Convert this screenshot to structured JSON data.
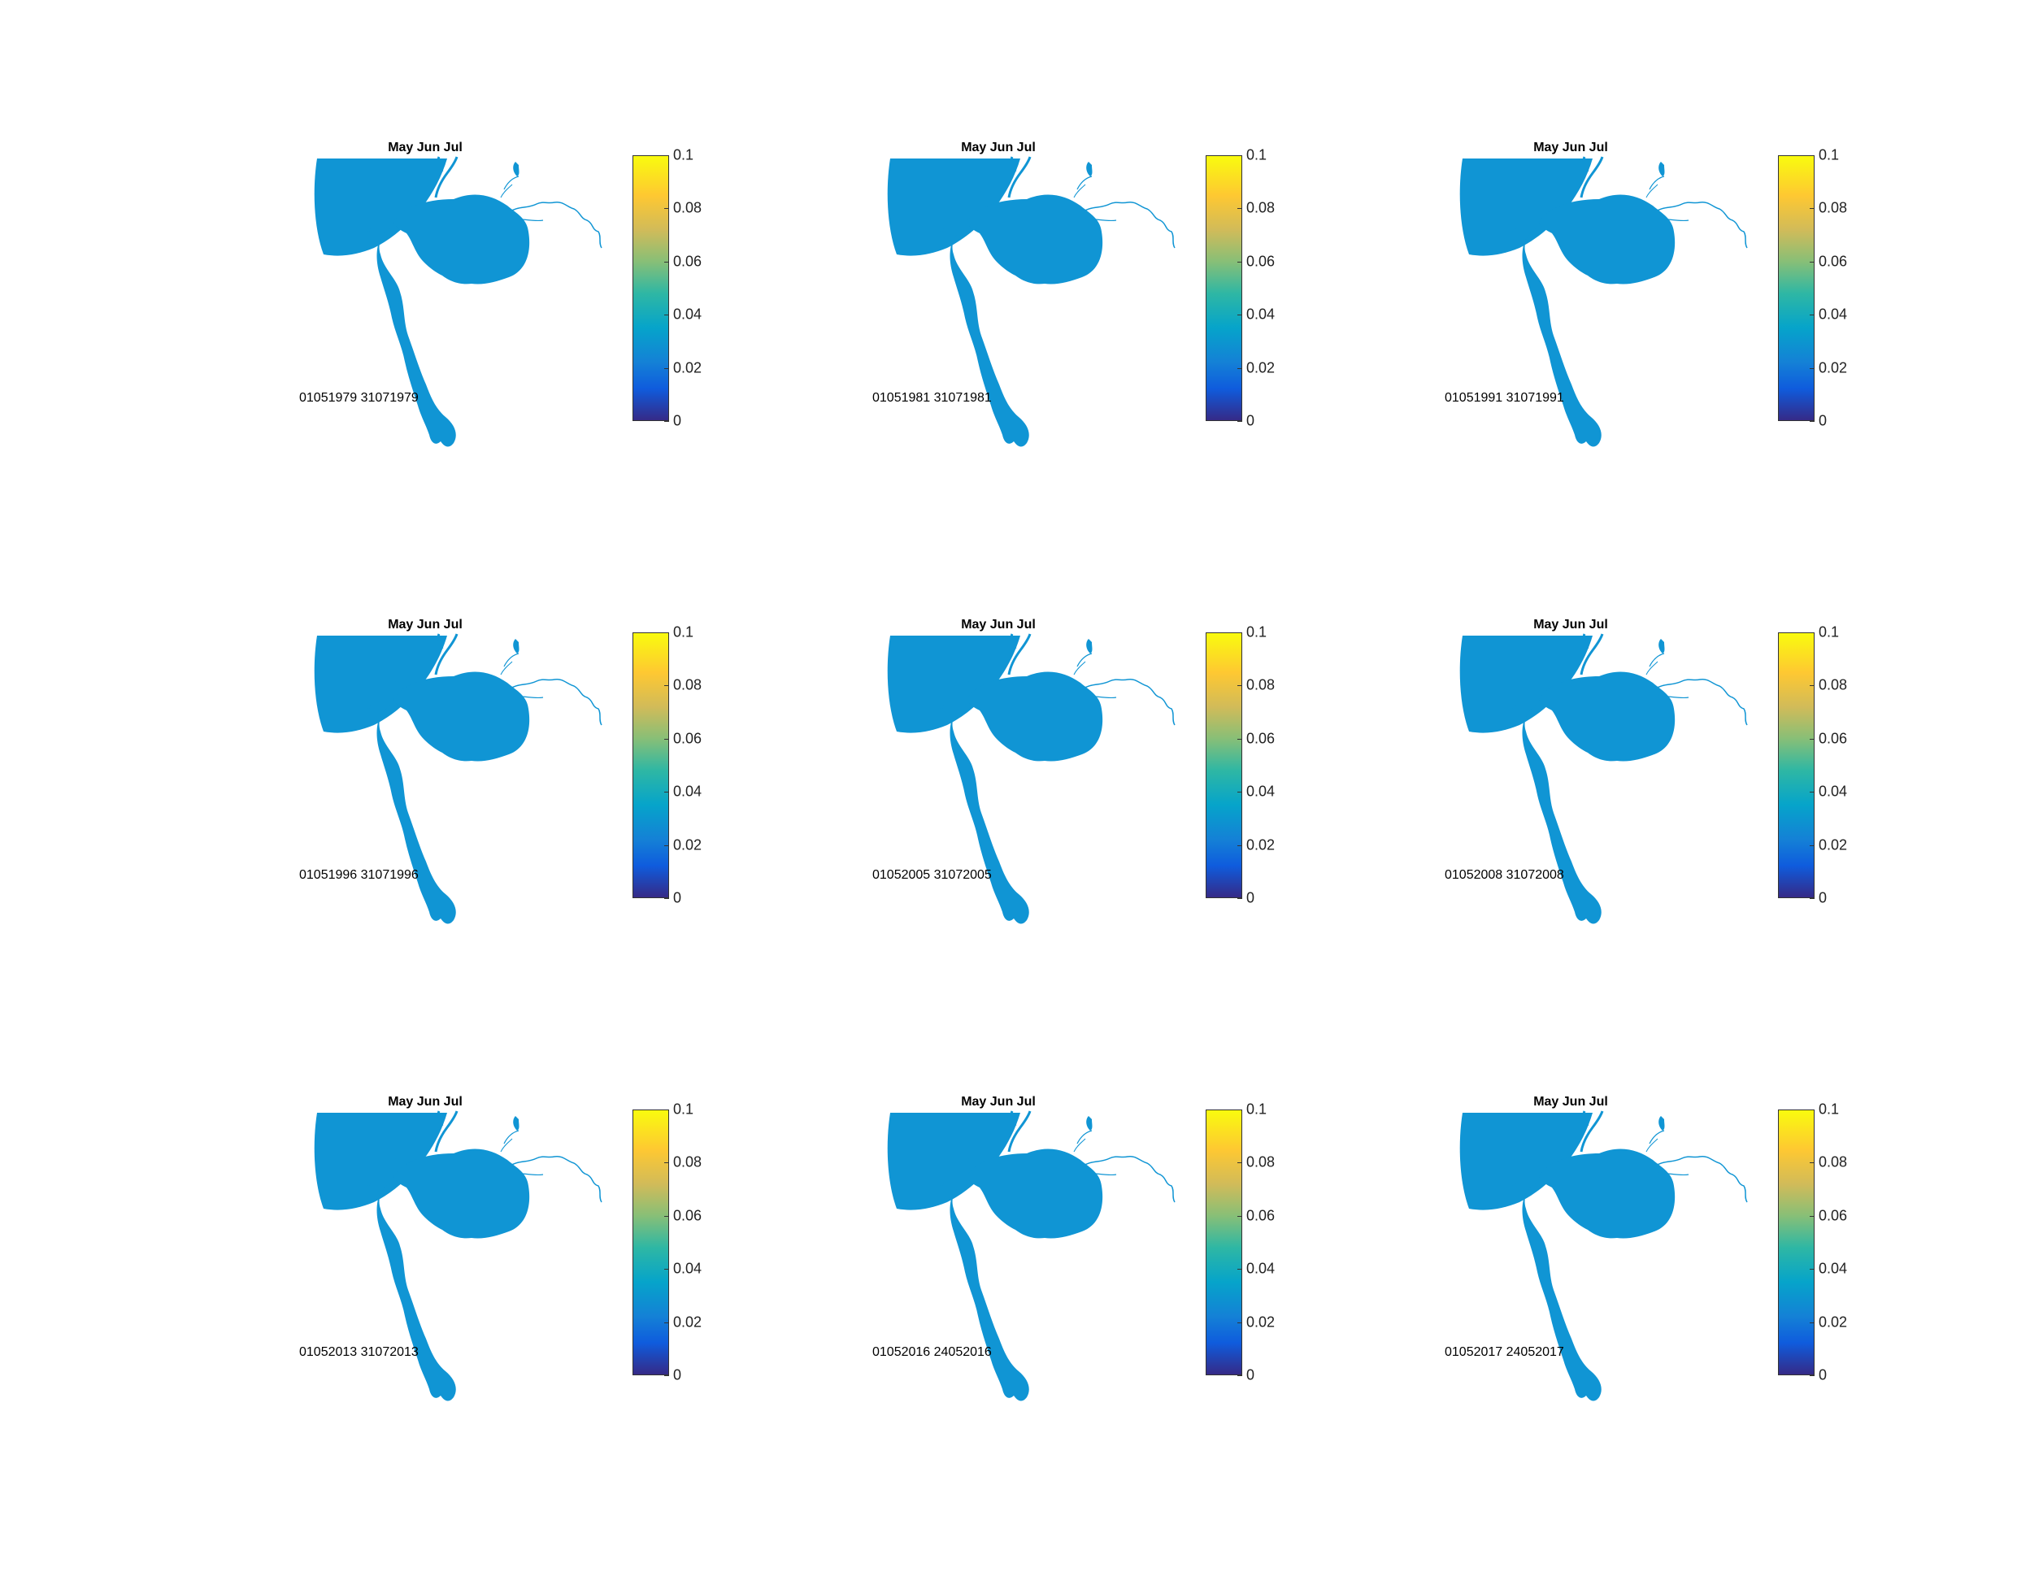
{
  "figure": {
    "colormap": "parula",
    "water_color": "#1095d4",
    "colorbar_ticks": [
      "0",
      "0.02",
      "0.04",
      "0.06",
      "0.08",
      "0.1"
    ],
    "panels": [
      {
        "title": "May Jun Jul",
        "date_range": "01051979 31071979"
      },
      {
        "title": "May Jun Jul",
        "date_range": "01051981 31071981"
      },
      {
        "title": "May Jun Jul",
        "date_range": "01051991 31071991"
      },
      {
        "title": "May Jun Jul",
        "date_range": "01051996 31071996"
      },
      {
        "title": "May Jun Jul",
        "date_range": "01052005 31072005"
      },
      {
        "title": "May Jun Jul",
        "date_range": "01052008 31072008"
      },
      {
        "title": "May Jun Jul",
        "date_range": "01052013 31072013"
      },
      {
        "title": "May Jun Jul",
        "date_range": "01052016 24052016"
      },
      {
        "title": "May Jun Jul",
        "date_range": "01052017 24052017"
      }
    ]
  }
}
